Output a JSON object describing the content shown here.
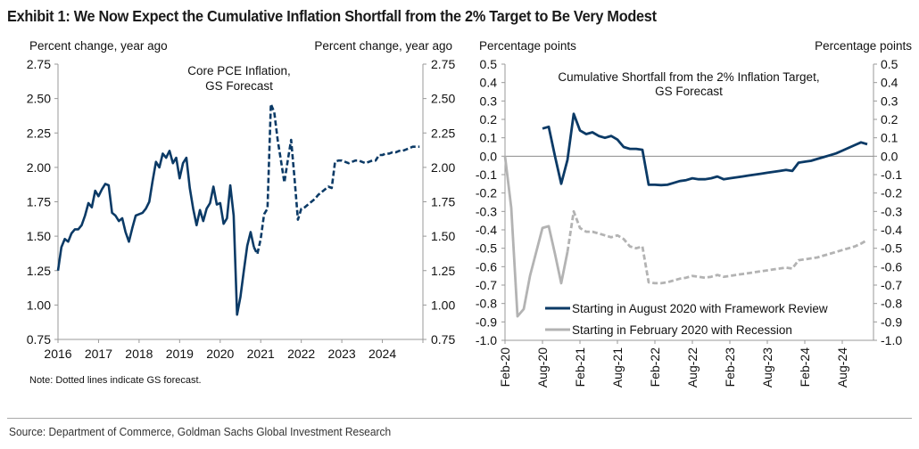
{
  "title": "Exhibit 1: We Now Expect the Cumulative Inflation Shortfall from the 2% Target to Be Very Modest",
  "source": "Source: Department of Commerce, Goldman Sachs Global Investment Research",
  "colors": {
    "navy": "#0b3a66",
    "gray": "#b3b3b3",
    "axis": "#999999",
    "zero_line": "#8c8c8c"
  },
  "chart_data": [
    {
      "type": "line",
      "title": "Core PCE Inflation,\nGS Forecast",
      "title_lines": [
        "Core PCE Inflation,",
        "GS Forecast"
      ],
      "ylabel_left": "Percent change, year ago",
      "ylabel_right": "Percent change, year ago",
      "ylim": [
        0.75,
        2.75
      ],
      "yticks": [
        "2.75",
        "2.50",
        "2.25",
        "2.00",
        "1.75",
        "1.50",
        "1.25",
        "1.00",
        "0.75"
      ],
      "ytick_values": [
        2.75,
        2.5,
        2.25,
        2.0,
        1.75,
        1.5,
        1.25,
        1.0,
        0.75
      ],
      "xlim": [
        "2016-01",
        "2025-01"
      ],
      "xticks": [
        "2016",
        "2017",
        "2018",
        "2019",
        "2020",
        "2021",
        "2022",
        "2023",
        "2024"
      ],
      "note": "Note: Dotted lines indicate GS forecast.",
      "grid": false,
      "x_start": "2016-01",
      "x_frequency": "monthly",
      "forecast_start_index": 58,
      "series": [
        {
          "name": "Core PCE Inflation",
          "color": "#0b3a66",
          "values": [
            1.25,
            1.42,
            1.48,
            1.46,
            1.52,
            1.55,
            1.55,
            1.58,
            1.65,
            1.74,
            1.71,
            1.83,
            1.79,
            1.84,
            1.88,
            1.87,
            1.67,
            1.65,
            1.61,
            1.63,
            1.53,
            1.46,
            1.56,
            1.65,
            1.66,
            1.67,
            1.7,
            1.75,
            1.9,
            2.04,
            2.0,
            2.1,
            2.07,
            2.12,
            2.03,
            2.07,
            1.92,
            2.03,
            2.07,
            1.85,
            1.7,
            1.58,
            1.69,
            1.61,
            1.7,
            1.74,
            1.86,
            1.73,
            1.74,
            1.59,
            1.63,
            1.87,
            1.65,
            0.93,
            1.06,
            1.25,
            1.43,
            1.53,
            1.42,
            1.37,
            1.48,
            1.66,
            1.7,
            2.46,
            2.4,
            2.2,
            2.05,
            1.89,
            2.05,
            2.2,
            1.92,
            1.62,
            1.7,
            1.71,
            1.73,
            1.75,
            1.77,
            1.8,
            1.82,
            1.84,
            1.86,
            1.85,
            2.04,
            2.05,
            2.05,
            2.04,
            2.03,
            2.04,
            2.05,
            2.05,
            2.04,
            2.03,
            2.04,
            2.05,
            2.05,
            2.09,
            2.09,
            2.1,
            2.1,
            2.11,
            2.11,
            2.12,
            2.12,
            2.13,
            2.14,
            2.15,
            2.15,
            2.15
          ]
        }
      ]
    },
    {
      "type": "line",
      "title": "Cumulative Shortfall from the 2% Inflation Target,\nGS Forecast",
      "title_lines": [
        "Cumulative Shortfall from the 2% Inflation Target,",
        "GS Forecast"
      ],
      "ylabel_left": "Percentage points",
      "ylabel_right": "Percentage points",
      "ylim": [
        -1.0,
        0.5
      ],
      "yticks": [
        "0.5",
        "0.4",
        "0.3",
        "0.2",
        "0.1",
        "0.0",
        "-0.1",
        "-0.2",
        "-0.3",
        "-0.4",
        "-0.5",
        "-0.6",
        "-0.7",
        "-0.8",
        "-0.9",
        "-1.0"
      ],
      "ytick_values": [
        0.5,
        0.4,
        0.3,
        0.2,
        0.1,
        0.0,
        -0.1,
        -0.2,
        -0.3,
        -0.4,
        -0.5,
        -0.6,
        -0.7,
        -0.8,
        -0.9,
        -1.0
      ],
      "xlim": [
        "2020-02",
        "2025-01"
      ],
      "xticks": [
        "Feb-20",
        "Aug-20",
        "Feb-21",
        "Aug-21",
        "Feb-22",
        "Aug-22",
        "Feb-23",
        "Aug-23",
        "Feb-24",
        "Aug-24"
      ],
      "grid": false,
      "zero_line": true,
      "legend_position": "bottom-center",
      "x_start": "2020-02",
      "x_frequency": "monthly",
      "series": [
        {
          "name": "Starting in August 2020 with Framework Review",
          "color": "#0b3a66",
          "start_index": 6,
          "dashed_from_index": null,
          "values": [
            0.15,
            0.16,
            0.0,
            -0.15,
            -0.02,
            0.23,
            0.14,
            0.12,
            0.13,
            0.11,
            0.1,
            0.11,
            0.09,
            0.05,
            0.04,
            0.04,
            0.035,
            -0.155,
            -0.155,
            -0.157,
            -0.155,
            -0.145,
            -0.135,
            -0.13,
            -0.12,
            -0.125,
            -0.125,
            -0.12,
            -0.11,
            -0.125,
            -0.12,
            -0.115,
            -0.11,
            -0.105,
            -0.1,
            -0.095,
            -0.09,
            -0.085,
            -0.08,
            -0.075,
            -0.08,
            -0.035,
            -0.03,
            -0.025,
            -0.015,
            -0.005,
            0.005,
            0.015,
            0.03,
            0.045,
            0.06,
            0.075,
            0.065
          ]
        },
        {
          "name": "Starting in February 2020 with Recession",
          "color": "#b3b3b3",
          "start_index": 0,
          "dashed_from_index": 10,
          "values": [
            0.0,
            -0.28,
            -0.87,
            -0.83,
            -0.65,
            -0.52,
            -0.39,
            -0.38,
            -0.53,
            -0.69,
            -0.52,
            -0.3,
            -0.39,
            -0.41,
            -0.41,
            -0.42,
            -0.43,
            -0.44,
            -0.43,
            -0.45,
            -0.49,
            -0.5,
            -0.49,
            -0.685,
            -0.69,
            -0.69,
            -0.685,
            -0.675,
            -0.665,
            -0.66,
            -0.65,
            -0.655,
            -0.66,
            -0.655,
            -0.645,
            -0.655,
            -0.65,
            -0.645,
            -0.64,
            -0.635,
            -0.63,
            -0.625,
            -0.62,
            -0.615,
            -0.61,
            -0.605,
            -0.61,
            -0.565,
            -0.56,
            -0.555,
            -0.55,
            -0.54,
            -0.53,
            -0.52,
            -0.51,
            -0.5,
            -0.49,
            -0.475,
            -0.455
          ]
        }
      ]
    }
  ]
}
